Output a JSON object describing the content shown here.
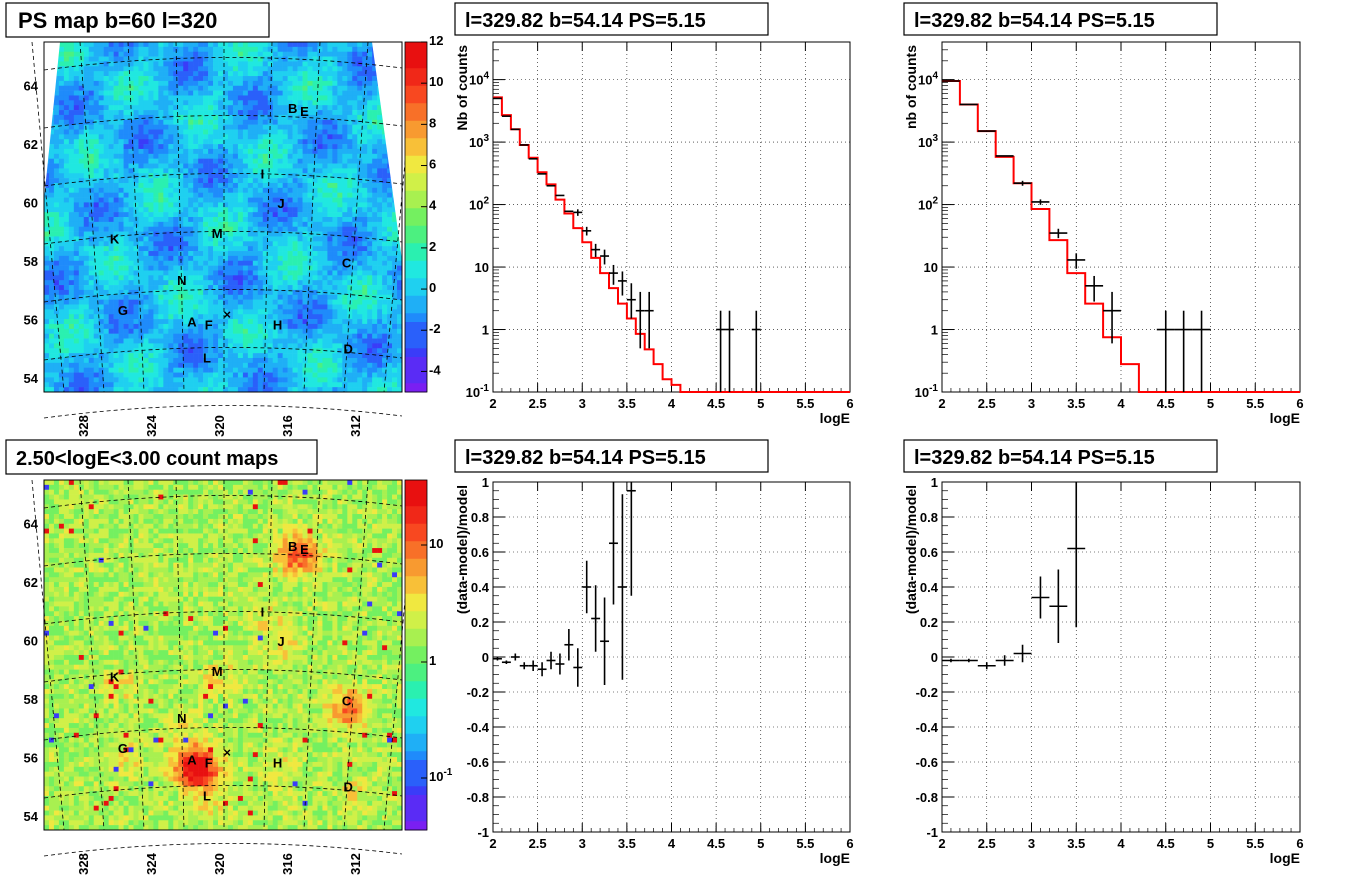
{
  "panels": {
    "map_top": {
      "title": "PS map b=60 l=320"
    },
    "map_bottom": {
      "title": "2.50<logE<3.00 count maps"
    },
    "spec_left_top": {
      "title": "l=329.82 b=54.14 PS=5.15"
    },
    "spec_right_top": {
      "title": "l=329.82 b=54.14 PS=5.15"
    },
    "res_left_bottom": {
      "title": "l=329.82 b=54.14 PS=5.15"
    },
    "res_right_bottom": {
      "title": "l=329.82 b=54.14 PS=5.15"
    }
  },
  "colors": {
    "model_line": "#ff0000",
    "data": "#000000"
  },
  "chart_data": [
    {
      "type": "heatmap",
      "title": "PS map b=60 l=320",
      "x_ticks": [
        "328",
        "324",
        "320",
        "316",
        "312"
      ],
      "y_ticks": [
        "54",
        "56",
        "58",
        "60",
        "62",
        "64"
      ],
      "colorbar_ticks": [
        "12",
        "10",
        "8",
        "6",
        "4",
        "2",
        "0",
        "-2",
        "-4"
      ],
      "colorbar_range": [
        -5,
        12
      ],
      "sources": [
        {
          "label": "B",
          "l": 315.7,
          "b": 63.0
        },
        {
          "label": "E",
          "l": 315.0,
          "b": 62.9
        },
        {
          "label": "I",
          "l": 317.5,
          "b": 60.8
        },
        {
          "label": "J",
          "l": 316.4,
          "b": 59.8
        },
        {
          "label": "M",
          "l": 320.2,
          "b": 58.8
        },
        {
          "label": "K",
          "l": 326.3,
          "b": 58.6
        },
        {
          "label": "C",
          "l": 312.5,
          "b": 57.8
        },
        {
          "label": "N",
          "l": 322.3,
          "b": 57.2
        },
        {
          "label": "G",
          "l": 325.8,
          "b": 56.2
        },
        {
          "label": "A",
          "l": 321.7,
          "b": 55.8
        },
        {
          "label": "F",
          "l": 320.7,
          "b": 55.7
        },
        {
          "label": "H",
          "l": 316.6,
          "b": 55.7
        },
        {
          "label": "D",
          "l": 312.4,
          "b": 54.9
        },
        {
          "label": "L",
          "l": 320.8,
          "b": 54.6
        }
      ],
      "marker": {
        "symbol": "×",
        "l": 319.6,
        "b": 56.2
      }
    },
    {
      "type": "line",
      "title": "l=329.82 b=54.14 PS=5.15",
      "xlabel": "logE",
      "ylabel": "Nb of counts",
      "xlim": [
        2,
        6
      ],
      "ylim": [
        0.1,
        40000
      ],
      "log_y": true,
      "x_ticks": [
        "2",
        "2.5",
        "3",
        "3.5",
        "4",
        "4.5",
        "5",
        "5.5",
        "6"
      ],
      "y_ticks": [
        "10^-1",
        "1",
        "10",
        "10^2",
        "10^3",
        "10^4"
      ],
      "model_steps": {
        "edges": [
          2.0,
          2.1,
          2.2,
          2.3,
          2.4,
          2.5,
          2.6,
          2.7,
          2.8,
          2.9,
          3.0,
          3.1,
          3.2,
          3.3,
          3.4,
          3.5,
          3.6,
          3.7,
          3.8,
          3.9,
          4.0,
          4.1,
          4.2,
          6.0
        ],
        "values": [
          5200,
          2700,
          1600,
          900,
          560,
          330,
          210,
          120,
          72,
          42,
          25,
          14,
          8,
          4.6,
          2.6,
          1.5,
          0.85,
          0.48,
          0.28,
          0.16,
          0.13,
          0.1,
          0.1
        ]
      },
      "points": [
        {
          "x": 2.05,
          "y": 5000,
          "ex": 0.05
        },
        {
          "x": 2.15,
          "y": 2600,
          "ex": 0.05
        },
        {
          "x": 2.25,
          "y": 1600,
          "ex": 0.05
        },
        {
          "x": 2.35,
          "y": 900,
          "ex": 0.05
        },
        {
          "x": 2.45,
          "y": 540,
          "ex": 0.05
        },
        {
          "x": 2.55,
          "y": 310,
          "ex": 0.05
        },
        {
          "x": 2.65,
          "y": 200,
          "ex": 0.05
        },
        {
          "x": 2.75,
          "y": 140,
          "ex": 0.05
        },
        {
          "x": 2.85,
          "y": 78,
          "ex": 0.05
        },
        {
          "x": 2.95,
          "y": 75,
          "ex": 0.05,
          "ey": 9
        },
        {
          "x": 3.05,
          "y": 38,
          "ex": 0.05,
          "ey": 6
        },
        {
          "x": 3.15,
          "y": 19,
          "ex": 0.05,
          "ey": 4.5
        },
        {
          "x": 3.25,
          "y": 15,
          "ex": 0.05,
          "ey": 4
        },
        {
          "x": 3.35,
          "y": 8,
          "ex": 0.05,
          "ey": 2.8
        },
        {
          "x": 3.45,
          "y": 6,
          "ex": 0.05,
          "ey": 2.5
        },
        {
          "x": 3.55,
          "y": 3,
          "ex": 0.05,
          "ey_lo": 1.5,
          "ey_hi": 2.5
        },
        {
          "x": 3.65,
          "y": 2,
          "ex": 0.05,
          "ey_lo": 1.5,
          "ey_hi": 2.0
        },
        {
          "x": 3.75,
          "y": 2,
          "ex": 0.05,
          "ey_lo": 1.5,
          "ey_hi": 2.0
        },
        {
          "x": 4.55,
          "y": 1,
          "ex": 0.05,
          "ey_lo": 0.9,
          "ey_hi": 1.0
        },
        {
          "x": 4.65,
          "y": 1,
          "ex": 0.05,
          "ey_lo": 0.9,
          "ey_hi": 1.0
        },
        {
          "x": 4.95,
          "y": 1,
          "ex": 0.05,
          "ey_lo": 0.9,
          "ey_hi": 1.0
        }
      ]
    },
    {
      "type": "line",
      "title": "l=329.82 b=54.14 PS=5.15",
      "xlabel": "logE",
      "ylabel": "nb of counts",
      "xlim": [
        2,
        6
      ],
      "ylim": [
        0.1,
        40000
      ],
      "log_y": true,
      "x_ticks": [
        "2",
        "2.5",
        "3",
        "3.5",
        "4",
        "4.5",
        "5",
        "5.5",
        "6"
      ],
      "y_ticks": [
        "10^-1",
        "1",
        "10",
        "10^2",
        "10^3",
        "10^4"
      ],
      "model_steps": {
        "edges": [
          2.0,
          2.2,
          2.4,
          2.6,
          2.8,
          3.0,
          3.2,
          3.4,
          3.6,
          3.8,
          4.0,
          4.2,
          6.0
        ],
        "values": [
          9500,
          4000,
          1500,
          580,
          220,
          85,
          27,
          8,
          2.6,
          0.75,
          0.28,
          0.1
        ]
      },
      "points": [
        {
          "x": 2.1,
          "y": 9500,
          "ex": 0.1
        },
        {
          "x": 2.3,
          "y": 4000,
          "ex": 0.1
        },
        {
          "x": 2.5,
          "y": 1500,
          "ex": 0.1
        },
        {
          "x": 2.7,
          "y": 600,
          "ex": 0.1
        },
        {
          "x": 2.9,
          "y": 220,
          "ex": 0.1,
          "ey": 20
        },
        {
          "x": 3.1,
          "y": 110,
          "ex": 0.1,
          "ey": 11
        },
        {
          "x": 3.3,
          "y": 35,
          "ex": 0.1,
          "ey": 6
        },
        {
          "x": 3.5,
          "y": 13,
          "ex": 0.1,
          "ey": 3.6
        },
        {
          "x": 3.7,
          "y": 5,
          "ex": 0.1,
          "ey": 2.2
        },
        {
          "x": 3.9,
          "y": 2,
          "ex": 0.1,
          "ey_lo": 1.4,
          "ey_hi": 2.0
        },
        {
          "x": 4.5,
          "y": 1,
          "ex": 0.1,
          "ey_lo": 0.9,
          "ey_hi": 1.0
        },
        {
          "x": 4.7,
          "y": 1,
          "ex": 0.1,
          "ey_lo": 0.9,
          "ey_hi": 1.0
        },
        {
          "x": 4.9,
          "y": 1,
          "ex": 0.1,
          "ey_lo": 0.9,
          "ey_hi": 1.0
        }
      ]
    },
    {
      "type": "heatmap",
      "title": "2.50<logE<3.00 count maps",
      "x_ticks": [
        "328",
        "324",
        "320",
        "316",
        "312"
      ],
      "y_ticks": [
        "54",
        "56",
        "58",
        "60",
        "62",
        "64"
      ],
      "colorbar_ticks": [
        "10",
        "1",
        "10^-1"
      ],
      "colorbar_scale": "log",
      "sources": [
        {
          "label": "B",
          "l": 315.7,
          "b": 63.0
        },
        {
          "label": "E",
          "l": 315.0,
          "b": 62.9
        },
        {
          "label": "I",
          "l": 317.5,
          "b": 60.8
        },
        {
          "label": "J",
          "l": 316.4,
          "b": 59.8
        },
        {
          "label": "M",
          "l": 320.2,
          "b": 58.8
        },
        {
          "label": "K",
          "l": 326.3,
          "b": 58.6
        },
        {
          "label": "C",
          "l": 312.5,
          "b": 57.8
        },
        {
          "label": "N",
          "l": 322.3,
          "b": 57.2
        },
        {
          "label": "G",
          "l": 325.8,
          "b": 56.2
        },
        {
          "label": "A",
          "l": 321.7,
          "b": 55.8
        },
        {
          "label": "F",
          "l": 320.7,
          "b": 55.7
        },
        {
          "label": "H",
          "l": 316.6,
          "b": 55.7
        },
        {
          "label": "D",
          "l": 312.4,
          "b": 54.9
        },
        {
          "label": "L",
          "l": 320.8,
          "b": 54.6
        }
      ],
      "marker": {
        "symbol": "×",
        "l": 319.6,
        "b": 56.2
      }
    },
    {
      "type": "scatter",
      "title": "l=329.82 b=54.14 PS=5.15",
      "xlabel": "logE",
      "ylabel": "(data-model)/model",
      "xlim": [
        2,
        6
      ],
      "ylim": [
        -1,
        1
      ],
      "x_ticks": [
        "2",
        "2.5",
        "3",
        "3.5",
        "4",
        "4.5",
        "5",
        "5.5",
        "6"
      ],
      "y_ticks": [
        "-1",
        "-0.8",
        "-0.6",
        "-0.4",
        "-0.2",
        "0",
        "0.2",
        "0.4",
        "0.6",
        "0.8",
        "1"
      ],
      "points": [
        {
          "x": 2.05,
          "y": -0.01,
          "ex": 0.05,
          "ey": 0.01
        },
        {
          "x": 2.15,
          "y": -0.03,
          "ex": 0.05,
          "ey": 0.01
        },
        {
          "x": 2.25,
          "y": 0.0,
          "ex": 0.05,
          "ey": 0.02
        },
        {
          "x": 2.35,
          "y": -0.05,
          "ex": 0.05,
          "ey": 0.02
        },
        {
          "x": 2.45,
          "y": -0.05,
          "ex": 0.05,
          "ey": 0.03
        },
        {
          "x": 2.55,
          "y": -0.07,
          "ex": 0.05,
          "ey": 0.04
        },
        {
          "x": 2.65,
          "y": -0.02,
          "ex": 0.05,
          "ey": 0.05
        },
        {
          "x": 2.75,
          "y": -0.04,
          "ex": 0.05,
          "ey": 0.06
        },
        {
          "x": 2.85,
          "y": 0.07,
          "ex": 0.05,
          "ey": 0.09
        },
        {
          "x": 2.95,
          "y": -0.06,
          "ex": 0.05,
          "ey": 0.11
        },
        {
          "x": 3.05,
          "y": 0.4,
          "ex": 0.05,
          "ey": 0.15
        },
        {
          "x": 3.15,
          "y": 0.22,
          "ex": 0.05,
          "ey": 0.19
        },
        {
          "x": 3.25,
          "y": 0.09,
          "ex": 0.05,
          "ey": 0.25
        },
        {
          "x": 3.35,
          "y": 0.65,
          "ex": 0.05,
          "ey": 0.35
        },
        {
          "x": 3.45,
          "y": 0.4,
          "ex": 0.05,
          "ey": 0.53
        },
        {
          "x": 3.55,
          "y": 0.95,
          "ex": 0.05,
          "ey": 0.6
        }
      ]
    },
    {
      "type": "scatter",
      "title": "l=329.82 b=54.14 PS=5.15",
      "xlabel": "logE",
      "ylabel": "(data-model)/model",
      "xlim": [
        2,
        6
      ],
      "ylim": [
        -1,
        1
      ],
      "x_ticks": [
        "2",
        "2.5",
        "3",
        "3.5",
        "4",
        "4.5",
        "5",
        "5.5",
        "6"
      ],
      "y_ticks": [
        "-1",
        "-0.8",
        "-0.6",
        "-0.4",
        "-0.2",
        "0",
        "0.2",
        "0.4",
        "0.6",
        "0.8",
        "1"
      ],
      "points": [
        {
          "x": 2.1,
          "y": -0.02,
          "ex": 0.1,
          "ey": 0.01
        },
        {
          "x": 2.3,
          "y": -0.02,
          "ex": 0.1,
          "ey": 0.01
        },
        {
          "x": 2.5,
          "y": -0.05,
          "ex": 0.1,
          "ey": 0.02
        },
        {
          "x": 2.7,
          "y": -0.02,
          "ex": 0.1,
          "ey": 0.03
        },
        {
          "x": 2.9,
          "y": 0.02,
          "ex": 0.1,
          "ey": 0.05
        },
        {
          "x": 3.1,
          "y": 0.34,
          "ex": 0.1,
          "ey": 0.12
        },
        {
          "x": 3.3,
          "y": 0.29,
          "ex": 0.1,
          "ey": 0.21
        },
        {
          "x": 3.5,
          "y": 0.62,
          "ex": 0.1,
          "ey": 0.45
        }
      ]
    }
  ]
}
